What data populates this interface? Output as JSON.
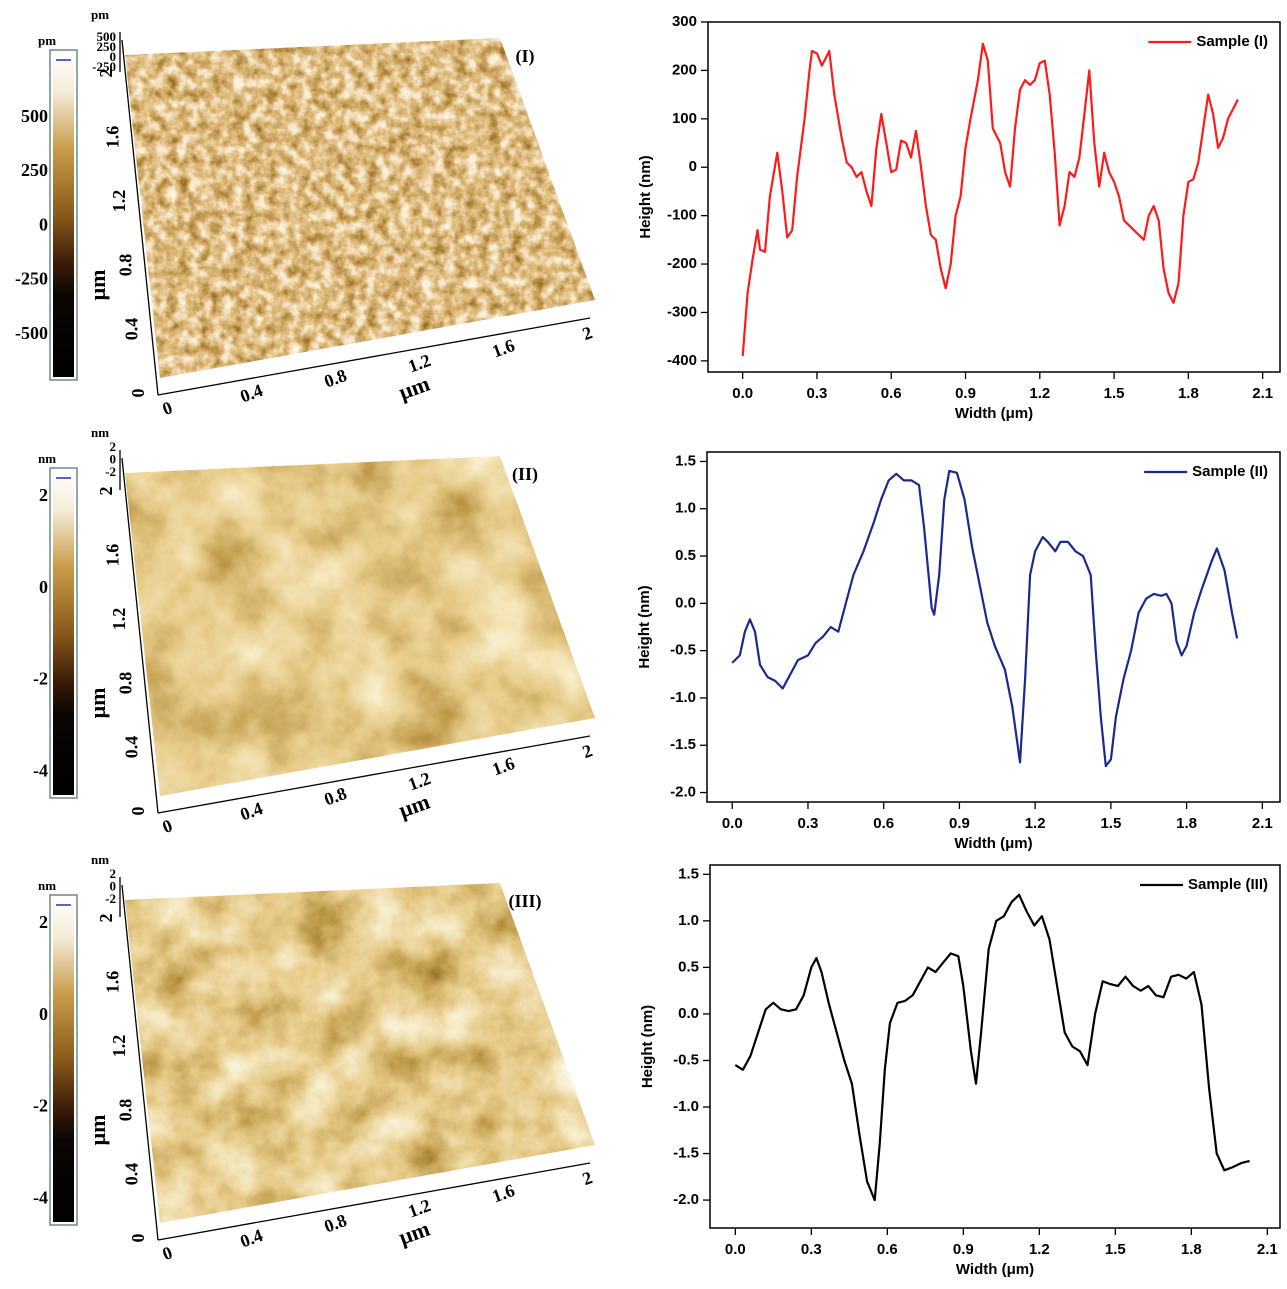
{
  "chart_data": [
    {
      "type": "line",
      "xlabel": "Width (μm)",
      "ylabel": "Height (nm)",
      "legend": "upper right",
      "xlim": [
        -0.14,
        2.17
      ],
      "ylim": [
        -423,
        300
      ],
      "xticks": [
        {
          "value": 0,
          "label": "0.0"
        },
        0.3,
        0.6,
        0.9,
        1.2,
        1.5,
        1.8,
        2.1
      ],
      "yticks": [
        -400,
        -300,
        -200,
        -100,
        0,
        100,
        200,
        300
      ],
      "x": [
        0.0,
        0.02,
        0.04,
        0.06,
        0.07,
        0.09,
        0.11,
        0.14,
        0.16,
        0.18,
        0.2,
        0.22,
        0.25,
        0.27,
        0.28,
        0.3,
        0.32,
        0.34,
        0.35,
        0.37,
        0.4,
        0.42,
        0.44,
        0.46,
        0.48,
        0.5,
        0.52,
        0.54,
        0.56,
        0.58,
        0.6,
        0.62,
        0.64,
        0.66,
        0.68,
        0.7,
        0.72,
        0.74,
        0.76,
        0.78,
        0.8,
        0.82,
        0.84,
        0.86,
        0.88,
        0.9,
        0.92,
        0.95,
        0.97,
        0.99,
        1.01,
        1.04,
        1.06,
        1.08,
        1.1,
        1.12,
        1.14,
        1.16,
        1.18,
        1.2,
        1.22,
        1.24,
        1.26,
        1.28,
        1.3,
        1.32,
        1.34,
        1.36,
        1.38,
        1.4,
        1.42,
        1.44,
        1.46,
        1.48,
        1.5,
        1.52,
        1.54,
        1.56,
        1.58,
        1.6,
        1.62,
        1.64,
        1.66,
        1.68,
        1.7,
        1.72,
        1.74,
        1.76,
        1.78,
        1.8,
        1.82,
        1.84,
        1.86,
        1.88,
        1.9,
        1.92,
        1.94,
        1.96,
        1.98,
        2.0
      ],
      "series": [
        {
          "name": "Sample (I)",
          "color": "#ff1a1a",
          "values": [
            -390,
            -260,
            -190,
            -130,
            -170,
            -175,
            -60,
            30,
            -50,
            -145,
            -130,
            -20,
            100,
            200,
            240,
            235,
            210,
            230,
            240,
            150,
            60,
            10,
            0,
            -20,
            -10,
            -50,
            -80,
            40,
            110,
            50,
            -10,
            -5,
            55,
            50,
            20,
            75,
            0,
            -80,
            -140,
            -150,
            -210,
            -250,
            -200,
            -100,
            -60,
            40,
            100,
            180,
            255,
            220,
            80,
            50,
            -10,
            -40,
            80,
            160,
            180,
            170,
            180,
            215,
            220,
            150,
            30,
            -120,
            -80,
            -10,
            -20,
            20,
            110,
            200,
            50,
            -40,
            30,
            -10,
            -30,
            -60,
            -110,
            -120,
            -130,
            -140,
            -150,
            -100,
            -80,
            -110,
            -210,
            -260,
            -280,
            -240,
            -100,
            -30,
            -25,
            10,
            80,
            150,
            110,
            40,
            60,
            100,
            120,
            140
          ]
        }
      ]
    },
    {
      "type": "line",
      "xlabel": "Width (μm)",
      "ylabel": "Height (nm)",
      "legend": "upper right",
      "xlim": [
        -0.1,
        2.17
      ],
      "ylim": [
        -2.1,
        1.6
      ],
      "xticks": [
        {
          "value": 0,
          "label": "0.0"
        },
        0.3,
        0.6,
        0.9,
        1.2,
        1.5,
        1.8,
        2.1
      ],
      "yticks": [
        {
          "value": -2,
          "label": "-2.0"
        },
        -1.5,
        {
          "value": -1,
          "label": "-1.0"
        },
        -0.5,
        {
          "value": 0,
          "label": "0.0"
        },
        0.5,
        {
          "value": 1,
          "label": "1.0"
        },
        1.5
      ],
      "x": [
        0.0,
        0.03,
        0.05,
        0.07,
        0.09,
        0.11,
        0.14,
        0.17,
        0.2,
        0.23,
        0.26,
        0.3,
        0.33,
        0.36,
        0.39,
        0.42,
        0.45,
        0.48,
        0.52,
        0.56,
        0.59,
        0.62,
        0.65,
        0.68,
        0.71,
        0.74,
        0.76,
        0.79,
        0.8,
        0.82,
        0.84,
        0.86,
        0.89,
        0.92,
        0.95,
        0.98,
        1.01,
        1.04,
        1.08,
        1.11,
        1.14,
        1.16,
        1.18,
        1.2,
        1.23,
        1.25,
        1.28,
        1.3,
        1.33,
        1.36,
        1.39,
        1.42,
        1.44,
        1.46,
        1.48,
        1.5,
        1.52,
        1.55,
        1.58,
        1.61,
        1.64,
        1.67,
        1.7,
        1.72,
        1.74,
        1.76,
        1.78,
        1.8,
        1.83,
        1.86,
        1.9,
        1.92,
        1.95,
        1.98,
        2.0
      ],
      "series": [
        {
          "name": "Sample (II)",
          "color": "#1a2a8c",
          "values": [
            -0.63,
            -0.55,
            -0.3,
            -0.17,
            -0.3,
            -0.65,
            -0.78,
            -0.82,
            -0.9,
            -0.75,
            -0.6,
            -0.55,
            -0.42,
            -0.35,
            -0.25,
            -0.3,
            0.0,
            0.3,
            0.55,
            0.85,
            1.1,
            1.3,
            1.37,
            1.3,
            1.3,
            1.25,
            0.8,
            -0.05,
            -0.12,
            0.3,
            1.1,
            1.4,
            1.38,
            1.1,
            0.6,
            0.2,
            -0.2,
            -0.45,
            -0.7,
            -1.1,
            -1.68,
            -0.8,
            0.3,
            0.55,
            0.7,
            0.65,
            0.55,
            0.65,
            0.65,
            0.55,
            0.5,
            0.3,
            -0.5,
            -1.2,
            -1.72,
            -1.65,
            -1.2,
            -0.8,
            -0.5,
            -0.1,
            0.05,
            0.1,
            0.08,
            0.1,
            0.0,
            -0.4,
            -0.55,
            -0.45,
            -0.1,
            0.15,
            0.45,
            0.58,
            0.35,
            -0.1,
            -0.37
          ]
        }
      ]
    },
    {
      "type": "line",
      "xlabel": "Width (μm)",
      "ylabel": "Height (nm)",
      "legend": "upper right",
      "xlim": [
        -0.1,
        2.15
      ],
      "ylim": [
        -2.3,
        1.6
      ],
      "xticks": [
        {
          "value": 0,
          "label": "0.0"
        },
        0.3,
        0.6,
        0.9,
        1.2,
        1.5,
        1.8,
        2.1
      ],
      "yticks": [
        {
          "value": -2,
          "label": "-2.0"
        },
        -1.5,
        {
          "value": -1,
          "label": "-1.0"
        },
        -0.5,
        {
          "value": 0,
          "label": "0.0"
        },
        0.5,
        {
          "value": 1,
          "label": "1.0"
        },
        1.5
      ],
      "x": [
        0.0,
        0.03,
        0.06,
        0.09,
        0.12,
        0.15,
        0.18,
        0.21,
        0.24,
        0.27,
        0.3,
        0.32,
        0.34,
        0.37,
        0.4,
        0.43,
        0.46,
        0.49,
        0.52,
        0.55,
        0.57,
        0.59,
        0.61,
        0.64,
        0.67,
        0.7,
        0.73,
        0.76,
        0.79,
        0.82,
        0.85,
        0.88,
        0.9,
        0.93,
        0.95,
        0.97,
        1.0,
        1.03,
        1.06,
        1.09,
        1.12,
        1.15,
        1.18,
        1.21,
        1.24,
        1.27,
        1.3,
        1.33,
        1.36,
        1.39,
        1.42,
        1.45,
        1.48,
        1.51,
        1.54,
        1.57,
        1.6,
        1.63,
        1.66,
        1.69,
        1.72,
        1.75,
        1.78,
        1.81,
        1.84,
        1.87,
        1.9,
        1.93,
        1.96,
        2.0,
        2.03
      ],
      "series": [
        {
          "name": "Sample (III)",
          "color": "#000000",
          "values": [
            -0.55,
            -0.6,
            -0.45,
            -0.2,
            0.05,
            0.12,
            0.05,
            0.03,
            0.05,
            0.2,
            0.5,
            0.6,
            0.45,
            0.1,
            -0.2,
            -0.5,
            -0.75,
            -1.3,
            -1.8,
            -2.0,
            -1.4,
            -0.6,
            -0.1,
            0.12,
            0.14,
            0.2,
            0.35,
            0.5,
            0.45,
            0.55,
            0.65,
            0.62,
            0.3,
            -0.4,
            -0.75,
            -0.2,
            0.7,
            1.0,
            1.05,
            1.2,
            1.28,
            1.1,
            0.95,
            1.05,
            0.8,
            0.3,
            -0.2,
            -0.35,
            -0.4,
            -0.55,
            0.0,
            0.35,
            0.32,
            0.3,
            0.4,
            0.3,
            0.25,
            0.3,
            0.2,
            0.18,
            0.4,
            0.42,
            0.38,
            0.45,
            0.1,
            -0.8,
            -1.5,
            -1.68,
            -1.65,
            -1.6,
            -1.58
          ]
        }
      ]
    }
  ],
  "afm_panels": [
    {
      "label": "(I)",
      "colorbar_unit": "pm",
      "colorbar_ticks": [
        "500",
        "250",
        "0",
        "-250",
        "-500"
      ],
      "z_unit": "pm",
      "z_ticks": [
        "500",
        "250",
        "0",
        "-250"
      ],
      "x_ticks": [
        "0",
        "0.4",
        "0.8",
        "1.2",
        "1.6",
        "2"
      ],
      "y_ticks": [
        "0",
        "0.4",
        "0.8",
        "1.2",
        "1.6",
        "2"
      ],
      "x_unit": "μm",
      "y_unit": "μm"
    },
    {
      "label": "(II)",
      "colorbar_unit": "nm",
      "colorbar_ticks": [
        "2",
        "0",
        "-2",
        "-4"
      ],
      "z_unit": "nm",
      "z_ticks": [
        "2",
        "0",
        "-2"
      ],
      "x_ticks": [
        "0",
        "0.4",
        "0.8",
        "1.2",
        "1.6",
        "2"
      ],
      "y_ticks": [
        "0",
        "0.4",
        "0.8",
        "1.2",
        "1.6",
        "2"
      ],
      "x_unit": "μm",
      "y_unit": "μm"
    },
    {
      "label": "(III)",
      "colorbar_unit": "nm",
      "colorbar_ticks": [
        "2",
        "0",
        "-2",
        "-4"
      ],
      "z_unit": "nm",
      "z_ticks": [
        "2",
        "0",
        "-2"
      ],
      "x_ticks": [
        "0",
        "0.4",
        "0.8",
        "1.2",
        "1.6",
        "2"
      ],
      "y_ticks": [
        "0",
        "0.4",
        "0.8",
        "1.2",
        "1.6",
        "2"
      ],
      "x_unit": "μm",
      "y_unit": "μm"
    }
  ]
}
